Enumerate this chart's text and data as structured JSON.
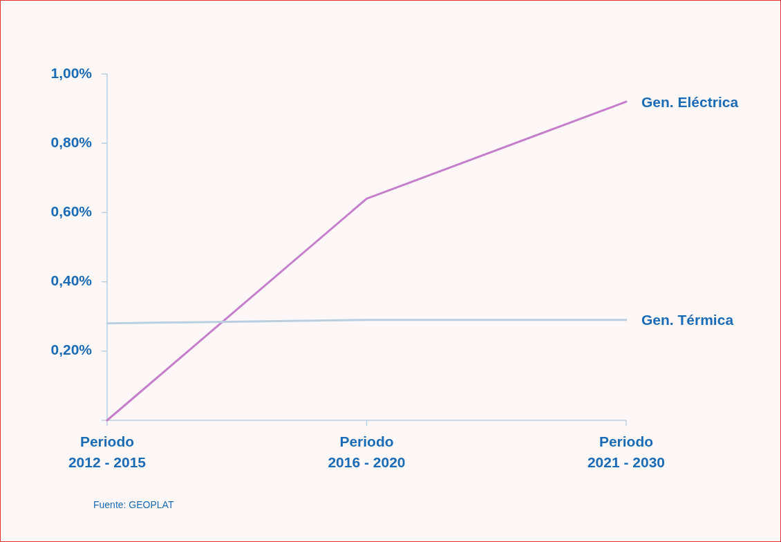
{
  "chart_data": {
    "type": "line",
    "categories": [
      "Periodo\n2012 - 2015",
      "Periodo\n2016 - 2020",
      "Periodo\n2021 - 2030"
    ],
    "series": [
      {
        "name": "Gen. Eléctrica",
        "color": "#c57fca",
        "values": [
          0,
          0.64,
          0.92
        ]
      },
      {
        "name": "Gen. Térmica",
        "color": "#b9cfe0",
        "values": [
          0.28,
          0.29,
          0.29
        ]
      }
    ],
    "ylim": [
      0,
      1
    ],
    "yticks": [
      {
        "value": 0,
        "label": null
      },
      {
        "value": 0.2,
        "label": "0,20%"
      },
      {
        "value": 0.4,
        "label": "0,40%"
      },
      {
        "value": 0.6,
        "label": "0,60%"
      },
      {
        "value": 0.8,
        "label": "0,80%"
      },
      {
        "value": 1,
        "label": "1,00%"
      }
    ],
    "grid": false,
    "marker": "none",
    "line_style": "solid",
    "annotations": [
      "Fuente: GEOPLAT"
    ]
  }
}
